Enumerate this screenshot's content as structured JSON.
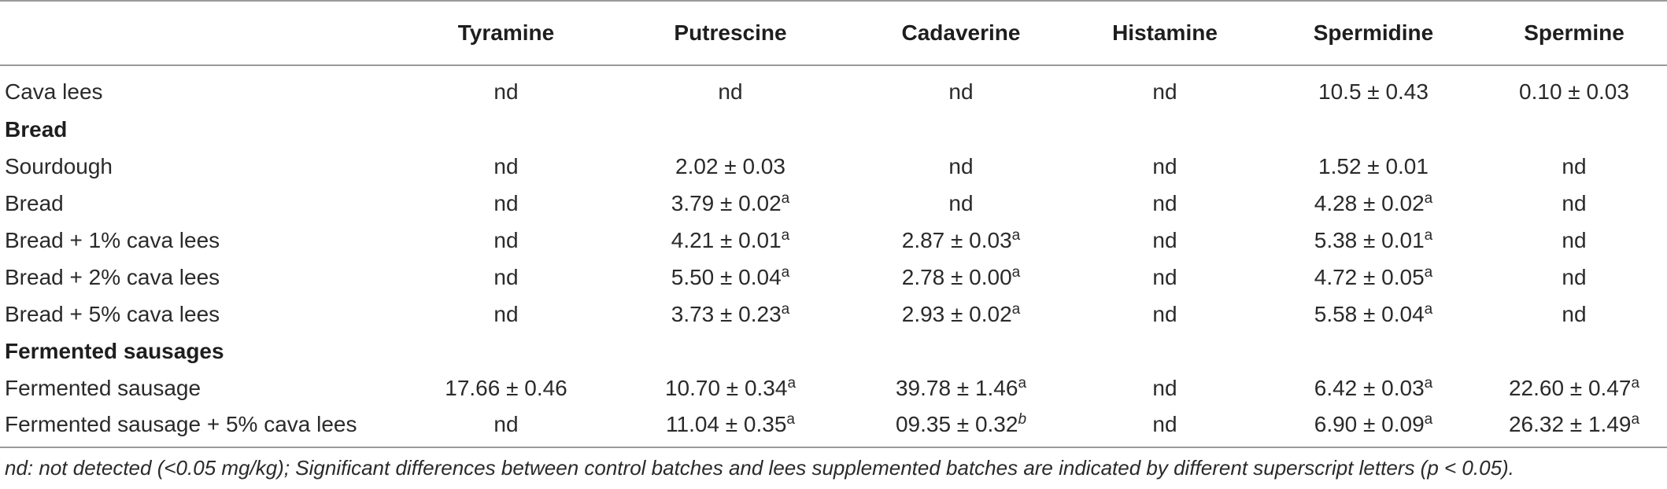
{
  "table": {
    "headers": [
      "",
      "Tyramine",
      "Putrescine",
      "Cadaverine",
      "Histamine",
      "Spermidine",
      "Spermine"
    ],
    "rows": [
      {
        "type": "data",
        "label": "Cava lees",
        "cells": [
          {
            "v": "nd",
            "s": ""
          },
          {
            "v": "nd",
            "s": ""
          },
          {
            "v": "nd",
            "s": ""
          },
          {
            "v": "nd",
            "s": ""
          },
          {
            "v": "10.5 ± 0.43",
            "s": ""
          },
          {
            "v": "0.10 ± 0.03",
            "s": ""
          }
        ]
      },
      {
        "type": "section",
        "label": "Bread"
      },
      {
        "type": "data",
        "label": "Sourdough",
        "cells": [
          {
            "v": "nd",
            "s": ""
          },
          {
            "v": "2.02 ± 0.03",
            "s": ""
          },
          {
            "v": "nd",
            "s": ""
          },
          {
            "v": "nd",
            "s": ""
          },
          {
            "v": "1.52 ± 0.01",
            "s": ""
          },
          {
            "v": "nd",
            "s": ""
          }
        ]
      },
      {
        "type": "data",
        "label": "Bread",
        "cells": [
          {
            "v": "nd",
            "s": ""
          },
          {
            "v": "3.79 ± 0.02",
            "s": "a"
          },
          {
            "v": "nd",
            "s": ""
          },
          {
            "v": "nd",
            "s": ""
          },
          {
            "v": "4.28 ± 0.02",
            "s": "a"
          },
          {
            "v": "nd",
            "s": ""
          }
        ]
      },
      {
        "type": "data",
        "label": "Bread + 1% cava lees",
        "cells": [
          {
            "v": "nd",
            "s": ""
          },
          {
            "v": "4.21 ± 0.01",
            "s": "a"
          },
          {
            "v": "2.87 ± 0.03",
            "s": "a"
          },
          {
            "v": "nd",
            "s": ""
          },
          {
            "v": "5.38 ± 0.01",
            "s": "a"
          },
          {
            "v": "nd",
            "s": ""
          }
        ]
      },
      {
        "type": "data",
        "label": "Bread + 2% cava lees",
        "cells": [
          {
            "v": "nd",
            "s": ""
          },
          {
            "v": "5.50 ± 0.04",
            "s": "a"
          },
          {
            "v": "2.78 ± 0.00",
            "s": "a"
          },
          {
            "v": "nd",
            "s": ""
          },
          {
            "v": "4.72 ± 0.05",
            "s": "a"
          },
          {
            "v": "nd",
            "s": ""
          }
        ]
      },
      {
        "type": "data",
        "label": "Bread + 5% cava lees",
        "cells": [
          {
            "v": "nd",
            "s": ""
          },
          {
            "v": "3.73 ± 0.23",
            "s": "a"
          },
          {
            "v": "2.93 ± 0.02",
            "s": "a"
          },
          {
            "v": "nd",
            "s": ""
          },
          {
            "v": "5.58 ± 0.04",
            "s": "a"
          },
          {
            "v": "nd",
            "s": ""
          }
        ]
      },
      {
        "type": "section",
        "label": "Fermented sausages"
      },
      {
        "type": "data",
        "label": "Fermented sausage",
        "cells": [
          {
            "v": "17.66 ± 0.46",
            "s": ""
          },
          {
            "v": "10.70 ± 0.34",
            "s": "a"
          },
          {
            "v": "39.78 ± 1.46",
            "s": "a"
          },
          {
            "v": "nd",
            "s": ""
          },
          {
            "v": "6.42 ± 0.03",
            "s": "a"
          },
          {
            "v": "22.60 ± 0.47",
            "s": "a"
          }
        ]
      },
      {
        "type": "data",
        "label": "Fermented sausage + 5% cava lees",
        "cells": [
          {
            "v": "nd",
            "s": ""
          },
          {
            "v": "11.04 ± 0.35",
            "s": "a"
          },
          {
            "v": "09.35 ± 0.32",
            "s": "b"
          },
          {
            "v": "nd",
            "s": ""
          },
          {
            "v": "6.90 ± 0.09",
            "s": "a"
          },
          {
            "v": "26.32 ± 1.49",
            "s": "a"
          }
        ]
      }
    ]
  },
  "footnote": "nd: not detected (<0.05 mg/kg); Significant differences between control batches and lees supplemented batches are indicated by different superscript letters (p < 0.05).",
  "colors": {
    "text": "#2a2a2a",
    "rule": "#9a9a9a"
  }
}
